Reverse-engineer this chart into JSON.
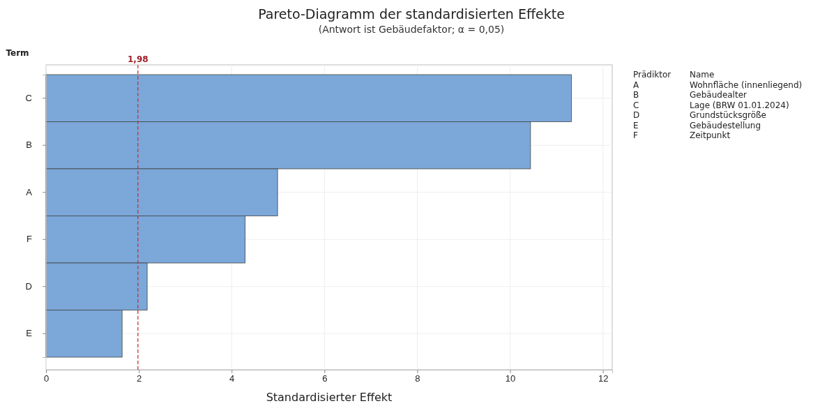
{
  "chart_data": {
    "type": "bar",
    "orientation": "horizontal",
    "title": "Pareto-Diagramm der standardisierten Effekte",
    "subtitle": "(Antwort ist Gebäudefaktor; α = 0,05)",
    "xlabel": "Standardisierter Effekt",
    "ylabel": "Term",
    "categories": [
      "C",
      "B",
      "A",
      "F",
      "D",
      "E"
    ],
    "values": [
      11.32,
      10.44,
      4.99,
      4.29,
      2.18,
      1.64
    ],
    "color": "#7ba7d9",
    "xlim": [
      0,
      12.2
    ],
    "xticks": [
      0,
      2,
      4,
      6,
      8,
      10,
      12
    ],
    "grid": true,
    "ref_lines": [
      {
        "axis": "x",
        "value": 1.98,
        "label": "1,98",
        "color": "#d62728",
        "line_style": "dashed"
      }
    ],
    "annotations": [
      "Prädiktor",
      "Name",
      "A",
      "Wohnfläche (innenliegend)",
      "B",
      "Gebäudealter",
      "C",
      "Lage (BRW 01.01.2024)",
      "D",
      "Grundstücksgröße",
      "E",
      "Gebäudestellung",
      "F",
      "Zeitpunkt"
    ]
  }
}
